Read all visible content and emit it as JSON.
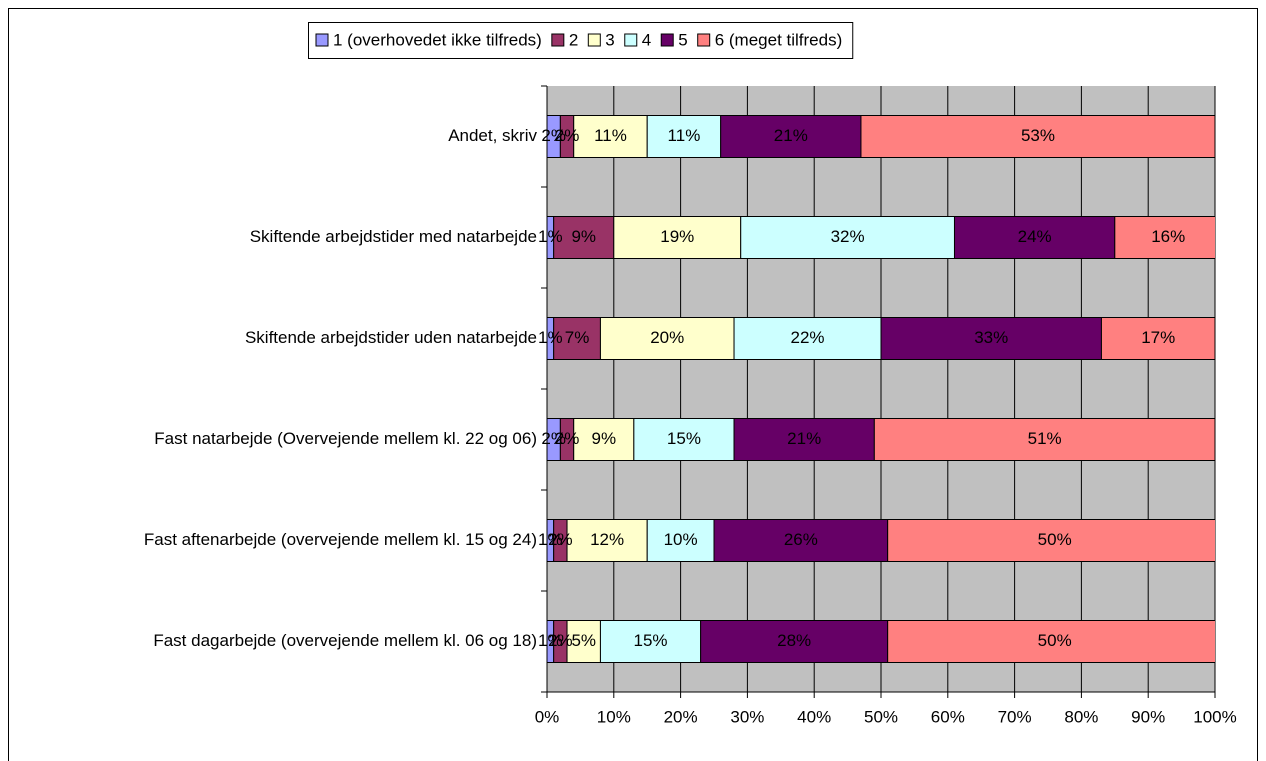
{
  "chart_data": {
    "type": "stacked_bar_horizontal",
    "categories": [
      "Andet, skriv",
      "Skiftende arbejdstider med natarbejde",
      "Skiftende arbejdstider uden natarbejde",
      "Fast natarbejde (Overvejende mellem kl. 22 og 06)",
      "Fast aftenarbejde (overvejende mellem kl. 15 og 24)",
      "Fast dagarbejde (overvejende mellem kl. 06 og 18)"
    ],
    "series": [
      {
        "name": "1 (overhovedet ikke tilfreds)",
        "color": "#9999ff",
        "values": [
          2,
          1,
          1,
          2,
          1,
          1
        ],
        "value_labels": [
          "2%",
          "1%",
          "1%",
          "2%",
          "1%",
          "1%"
        ]
      },
      {
        "name": "2",
        "color": "#993366",
        "values": [
          2,
          9,
          7,
          2,
          2,
          2
        ],
        "value_labels": [
          "2%",
          "9%",
          "7%",
          "2%",
          "2%",
          "2%"
        ]
      },
      {
        "name": "3",
        "color": "#ffffcc",
        "values": [
          11,
          19,
          20,
          9,
          12,
          5
        ],
        "value_labels": [
          "11%",
          "19%",
          "20%",
          "9%",
          "12%",
          "5%"
        ]
      },
      {
        "name": "4",
        "color": "#ccffff",
        "values": [
          11,
          32,
          22,
          15,
          10,
          15
        ],
        "value_labels": [
          "11%",
          "32%",
          "22%",
          "15%",
          "10%",
          "15%"
        ]
      },
      {
        "name": "5",
        "color": "#660066",
        "values": [
          21,
          24,
          33,
          21,
          26,
          28
        ],
        "value_labels": [
          "21%",
          "24%",
          "33%",
          "21%",
          "26%",
          "28%"
        ]
      },
      {
        "name": "6 (meget tilfreds)",
        "color": "#ff8080",
        "values": [
          53,
          16,
          17,
          51,
          50,
          50
        ],
        "value_labels": [
          "53%",
          "16%",
          "17%",
          "51%",
          "50%",
          "50%"
        ]
      }
    ],
    "xlim": [
      0,
      100
    ],
    "xticks": [
      {
        "value": 0,
        "label": "0%"
      },
      {
        "value": 10,
        "label": "10%"
      },
      {
        "value": 20,
        "label": "20%"
      },
      {
        "value": 30,
        "label": "30%"
      },
      {
        "value": 40,
        "label": "40%"
      },
      {
        "value": 50,
        "label": "50%"
      },
      {
        "value": 60,
        "label": "60%"
      },
      {
        "value": 70,
        "label": "70%"
      },
      {
        "value": 80,
        "label": "80%"
      },
      {
        "value": 90,
        "label": "90%"
      },
      {
        "value": 100,
        "label": "100%"
      }
    ],
    "grid": true,
    "plot_background": "#c0c0c0",
    "legend": "top"
  }
}
